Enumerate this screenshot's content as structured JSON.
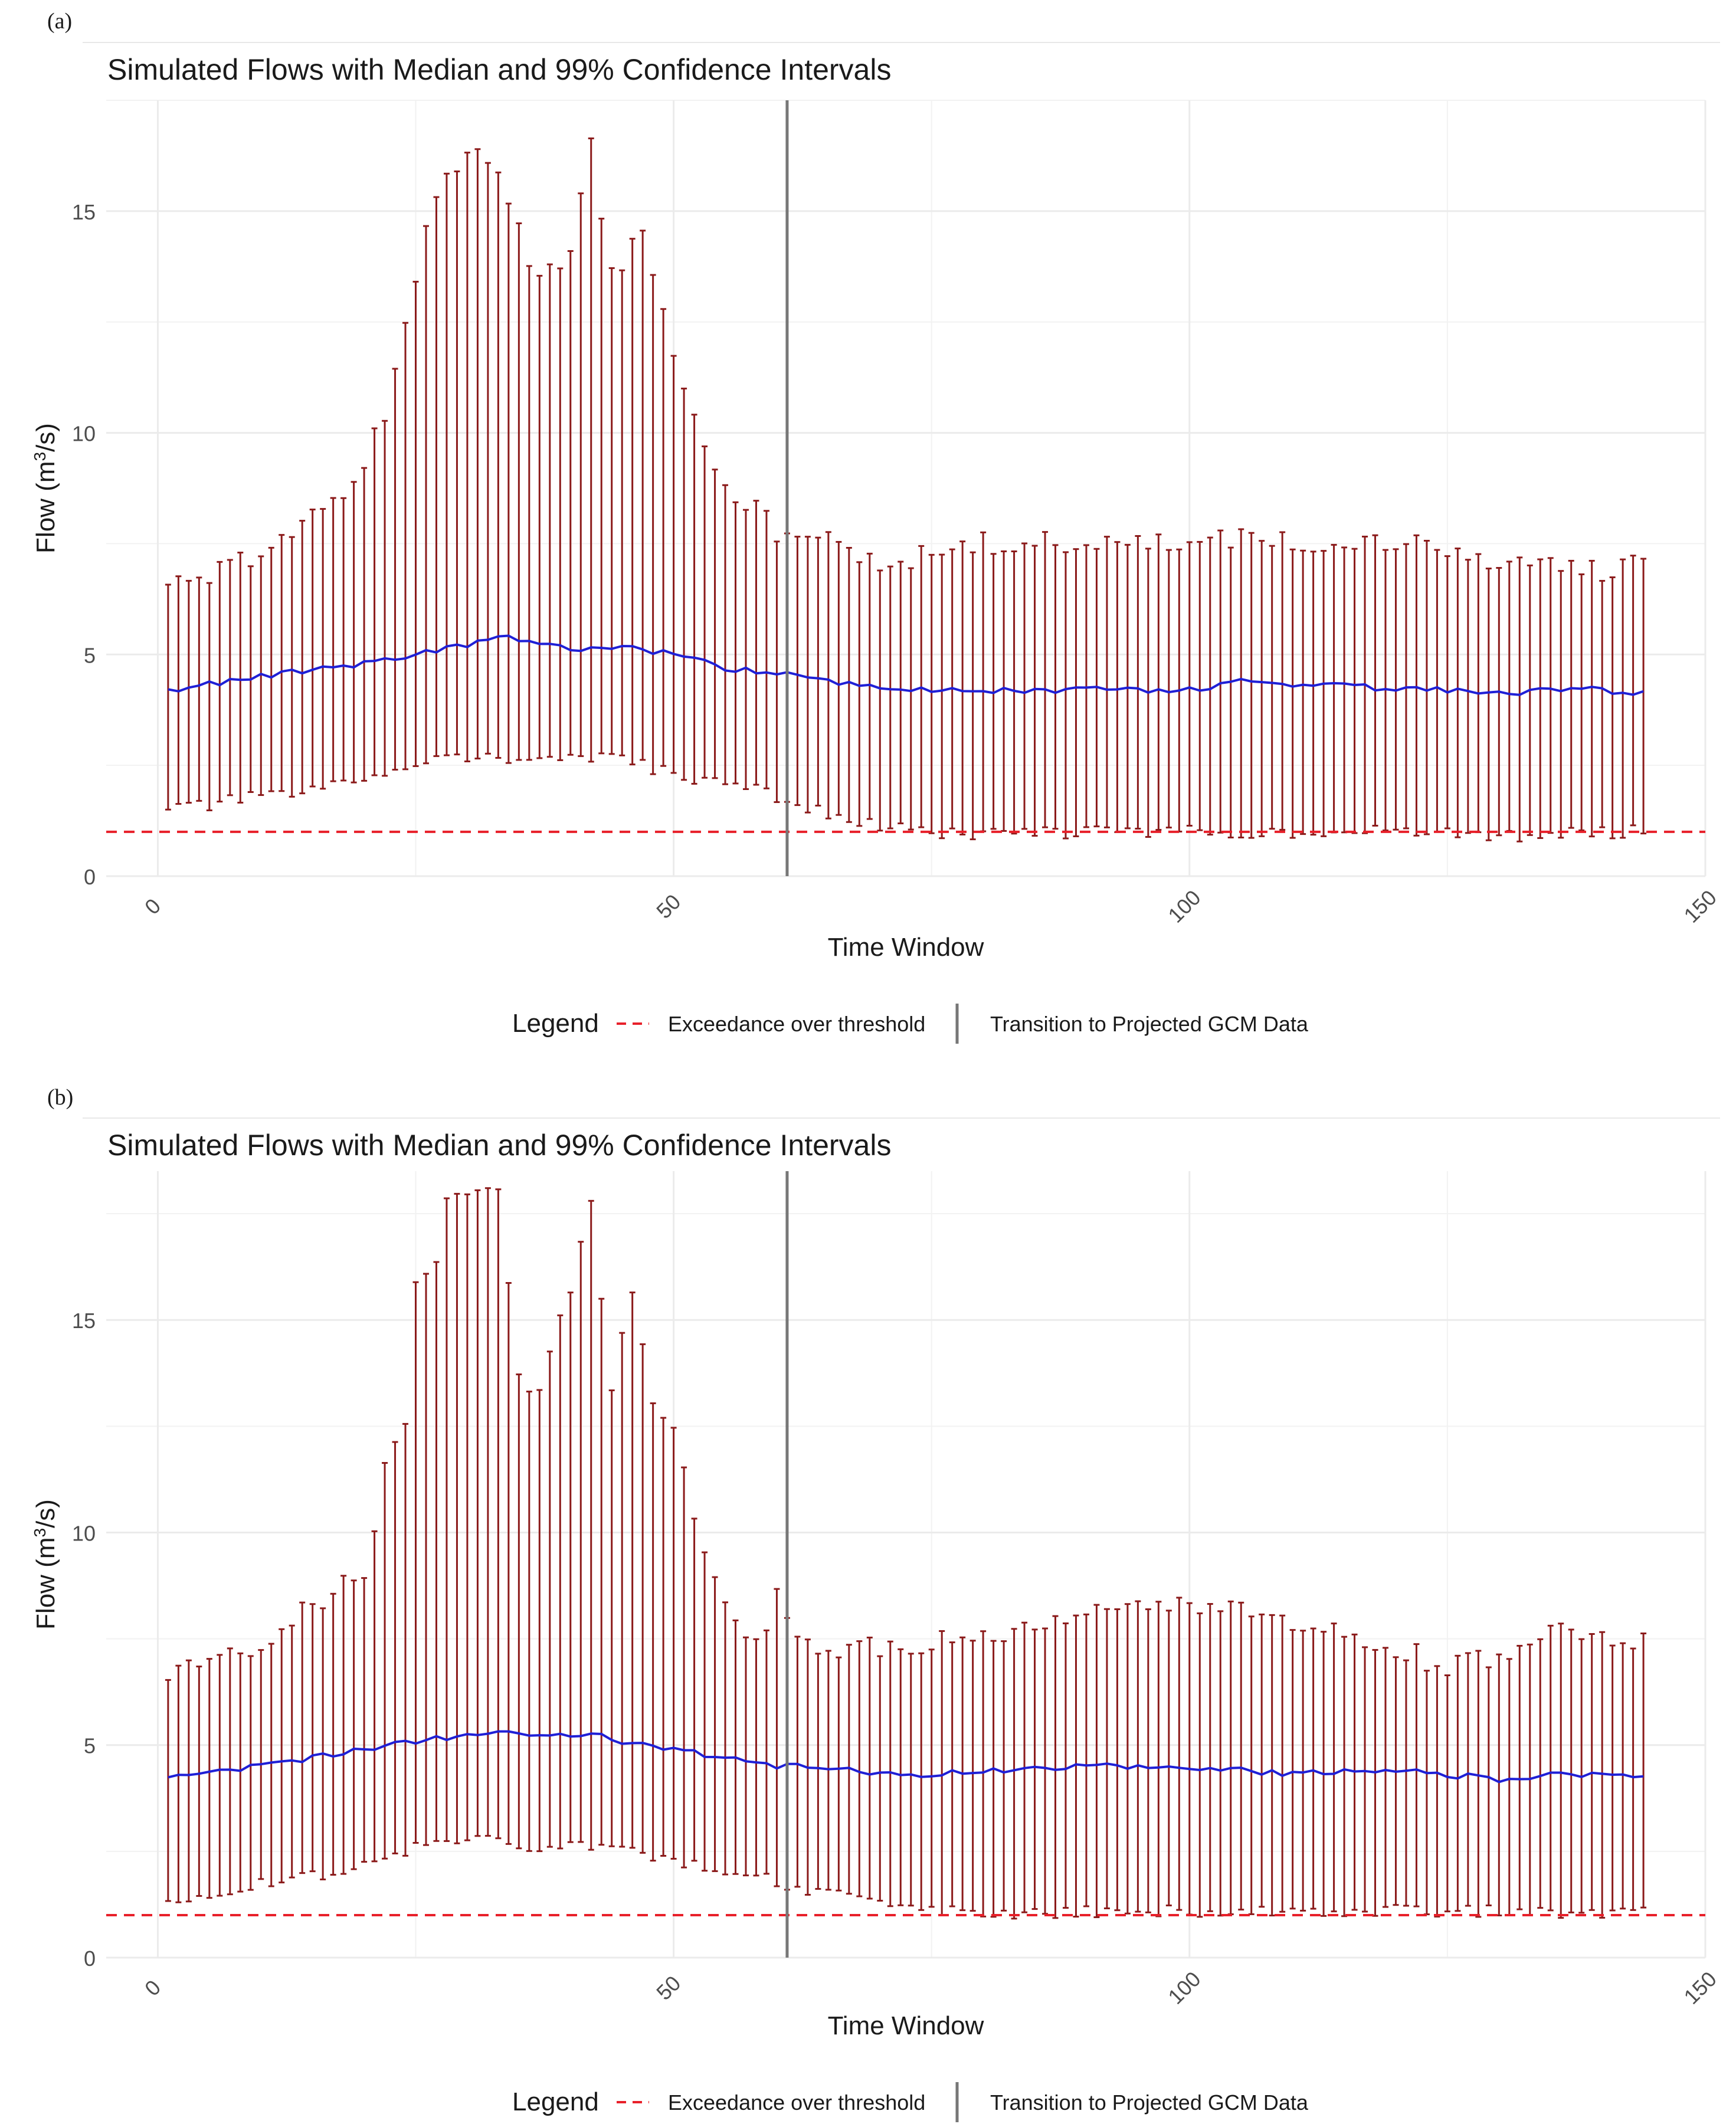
{
  "panels": [
    {
      "tag": "(a)",
      "title": "Simulated Flows with Median and 99% Confidence Intervals",
      "ylabel_pre": "Flow (m",
      "ylabel_sup": "3",
      "ylabel_post": "/s)",
      "xlabel": "Time Window",
      "x_ticks": [
        "0",
        "50",
        "100",
        "150"
      ],
      "y_ticks": [
        "0",
        "5",
        "10",
        "15"
      ],
      "legend": {
        "title": "Legend",
        "threshold_label": "Exceedance over threshold",
        "transition_label": "Transition to Projected GCM Data"
      }
    },
    {
      "tag": "(b)",
      "title": "Simulated Flows with Median and 99% Confidence Intervals",
      "ylabel_pre": "Flow (m",
      "ylabel_sup": "3",
      "ylabel_post": "/s)",
      "xlabel": "Time Window",
      "x_ticks": [
        "0",
        "50",
        "100",
        "150"
      ],
      "y_ticks": [
        "0",
        "5",
        "10",
        "15"
      ],
      "legend": {
        "title": "Legend",
        "threshold_label": "Exceedance over threshold",
        "transition_label": "Transition to Projected GCM Data"
      }
    }
  ],
  "colors": {
    "errorbar": "#8B1A1A",
    "median": "#1F1FD6",
    "threshold": "#E8202A",
    "transition": "#777777",
    "grid": "#EBEBEB",
    "text": "#1a1a1a",
    "tick": "#4d4d4d"
  },
  "chart_data": [
    {
      "type": "line",
      "title": "Simulated Flows with Median and 99% Confidence Intervals",
      "xlabel": "Time Window",
      "ylabel": "Flow (m3/s)",
      "xlim": [
        -5,
        150
      ],
      "ylim": [
        0,
        17.5
      ],
      "x_ticks": [
        0,
        50,
        100,
        150
      ],
      "y_ticks": [
        0,
        5,
        10,
        15
      ],
      "x_start": 1,
      "n_points": 144,
      "threshold": 1.0,
      "transition_x": 61,
      "median_anchors": [
        [
          1,
          4.2
        ],
        [
          10,
          4.5
        ],
        [
          20,
          4.8
        ],
        [
          30,
          5.2
        ],
        [
          33,
          5.4
        ],
        [
          40,
          5.1
        ],
        [
          45,
          5.2
        ],
        [
          50,
          5.0
        ],
        [
          55,
          4.7
        ],
        [
          60,
          4.6
        ],
        [
          65,
          4.4
        ],
        [
          70,
          4.3
        ],
        [
          75,
          4.2
        ],
        [
          80,
          4.2
        ],
        [
          90,
          4.2
        ],
        [
          100,
          4.2
        ],
        [
          105,
          4.4
        ],
        [
          110,
          4.3
        ],
        [
          115,
          4.3
        ],
        [
          120,
          4.2
        ],
        [
          125,
          4.2
        ],
        [
          130,
          4.1
        ],
        [
          135,
          4.2
        ],
        [
          140,
          4.2
        ],
        [
          144,
          4.1
        ]
      ],
      "upper_anchors": [
        [
          1,
          6.6
        ],
        [
          5,
          6.7
        ],
        [
          10,
          7.3
        ],
        [
          15,
          8.1
        ],
        [
          20,
          9.2
        ],
        [
          22,
          10.5
        ],
        [
          25,
          13.5
        ],
        [
          27,
          15.3
        ],
        [
          30,
          16.5
        ],
        [
          33,
          16.0
        ],
        [
          35,
          14.5
        ],
        [
          37,
          13.5
        ],
        [
          40,
          14.2
        ],
        [
          42,
          16.5
        ],
        [
          44,
          13.5
        ],
        [
          47,
          14.8
        ],
        [
          50,
          11.8
        ],
        [
          52,
          10.5
        ],
        [
          55,
          8.8
        ],
        [
          58,
          8.3
        ],
        [
          60,
          7.7
        ],
        [
          62,
          7.5
        ],
        [
          65,
          7.6
        ],
        [
          70,
          7.1
        ],
        [
          75,
          7.2
        ],
        [
          80,
          7.5
        ],
        [
          90,
          7.5
        ],
        [
          100,
          7.5
        ],
        [
          105,
          7.6
        ],
        [
          110,
          7.5
        ],
        [
          115,
          7.6
        ],
        [
          120,
          7.5
        ],
        [
          125,
          7.3
        ],
        [
          130,
          7.1
        ],
        [
          135,
          7.0
        ],
        [
          140,
          6.9
        ],
        [
          144,
          7.0
        ]
      ],
      "lower_anchors": [
        [
          1,
          1.5
        ],
        [
          5,
          1.6
        ],
        [
          10,
          1.8
        ],
        [
          15,
          1.9
        ],
        [
          20,
          2.2
        ],
        [
          25,
          2.6
        ],
        [
          30,
          2.7
        ],
        [
          35,
          2.6
        ],
        [
          40,
          2.7
        ],
        [
          45,
          2.6
        ],
        [
          50,
          2.3
        ],
        [
          55,
          2.1
        ],
        [
          60,
          1.8
        ],
        [
          65,
          1.4
        ],
        [
          70,
          1.1
        ],
        [
          75,
          1.0
        ],
        [
          80,
          0.9
        ],
        [
          85,
          1.0
        ],
        [
          90,
          1.0
        ],
        [
          95,
          1.0
        ],
        [
          100,
          1.0
        ],
        [
          110,
          1.0
        ],
        [
          120,
          1.0
        ],
        [
          130,
          0.9
        ],
        [
          140,
          1.0
        ],
        [
          144,
          1.0
        ]
      ]
    },
    {
      "type": "line",
      "title": "Simulated Flows with Median and 99% Confidence Intervals",
      "xlabel": "Time Window",
      "ylabel": "Flow (m3/s)",
      "xlim": [
        -5,
        150
      ],
      "ylim": [
        0,
        18.5
      ],
      "x_ticks": [
        0,
        50,
        100,
        150
      ],
      "y_ticks": [
        0,
        5,
        10,
        15
      ],
      "x_start": 1,
      "n_points": 144,
      "threshold": 1.0,
      "transition_x": 61,
      "median_anchors": [
        [
          1,
          4.2
        ],
        [
          10,
          4.5
        ],
        [
          20,
          4.9
        ],
        [
          25,
          5.1
        ],
        [
          30,
          5.2
        ],
        [
          35,
          5.3
        ],
        [
          40,
          5.2
        ],
        [
          42,
          5.3
        ],
        [
          45,
          5.1
        ],
        [
          50,
          4.9
        ],
        [
          55,
          4.7
        ],
        [
          60,
          4.5
        ],
        [
          65,
          4.5
        ],
        [
          70,
          4.3
        ],
        [
          75,
          4.3
        ],
        [
          80,
          4.4
        ],
        [
          90,
          4.5
        ],
        [
          95,
          4.5
        ],
        [
          100,
          4.4
        ],
        [
          105,
          4.4
        ],
        [
          110,
          4.3
        ],
        [
          115,
          4.4
        ],
        [
          120,
          4.4
        ],
        [
          125,
          4.3
        ],
        [
          130,
          4.2
        ],
        [
          135,
          4.3
        ],
        [
          140,
          4.3
        ],
        [
          144,
          4.2
        ]
      ],
      "upper_anchors": [
        [
          1,
          6.7
        ],
        [
          5,
          6.8
        ],
        [
          10,
          7.3
        ],
        [
          15,
          8.3
        ],
        [
          20,
          9.0
        ],
        [
          22,
          11.4
        ],
        [
          24,
          12.6
        ],
        [
          25,
          15.7
        ],
        [
          27,
          16.5
        ],
        [
          28,
          18.0
        ],
        [
          30,
          17.8
        ],
        [
          33,
          18.0
        ],
        [
          35,
          13.5
        ],
        [
          37,
          13.6
        ],
        [
          40,
          15.5
        ],
        [
          42,
          17.8
        ],
        [
          44,
          13.5
        ],
        [
          46,
          15.6
        ],
        [
          48,
          13.0
        ],
        [
          50,
          12.7
        ],
        [
          52,
          10.4
        ],
        [
          55,
          8.3
        ],
        [
          58,
          7.5
        ],
        [
          60,
          8.4
        ],
        [
          62,
          7.5
        ],
        [
          65,
          7.2
        ],
        [
          70,
          7.3
        ],
        [
          75,
          7.4
        ],
        [
          80,
          7.5
        ],
        [
          85,
          7.8
        ],
        [
          90,
          8.0
        ],
        [
          95,
          8.2
        ],
        [
          100,
          8.4
        ],
        [
          105,
          8.1
        ],
        [
          110,
          7.8
        ],
        [
          115,
          7.6
        ],
        [
          120,
          7.3
        ],
        [
          125,
          6.8
        ],
        [
          130,
          7.1
        ],
        [
          135,
          7.7
        ],
        [
          140,
          7.4
        ],
        [
          144,
          7.4
        ]
      ],
      "lower_anchors": [
        [
          1,
          1.2
        ],
        [
          5,
          1.5
        ],
        [
          10,
          1.7
        ],
        [
          15,
          1.9
        ],
        [
          20,
          2.2
        ],
        [
          25,
          2.6
        ],
        [
          30,
          2.8
        ],
        [
          35,
          2.6
        ],
        [
          40,
          2.7
        ],
        [
          45,
          2.5
        ],
        [
          50,
          2.3
        ],
        [
          55,
          2.1
        ],
        [
          60,
          1.8
        ],
        [
          65,
          1.5
        ],
        [
          70,
          1.2
        ],
        [
          75,
          1.1
        ],
        [
          80,
          1.0
        ],
        [
          90,
          1.1
        ],
        [
          100,
          1.1
        ],
        [
          110,
          1.1
        ],
        [
          120,
          1.1
        ],
        [
          130,
          1.1
        ],
        [
          140,
          1.0
        ],
        [
          144,
          1.1
        ]
      ]
    }
  ]
}
